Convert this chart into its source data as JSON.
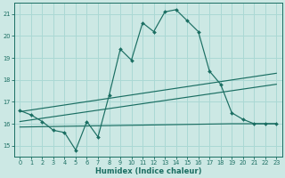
{
  "xlabel": "Humidex (Indice chaleur)",
  "background_color": "#cce8e4",
  "grid_color": "#aad8d4",
  "line_color": "#1a6e62",
  "xlim": [
    -0.5,
    23.5
  ],
  "ylim": [
    14.5,
    21.5
  ],
  "yticks": [
    15,
    16,
    17,
    18,
    19,
    20,
    21
  ],
  "xticks": [
    0,
    1,
    2,
    3,
    4,
    5,
    6,
    7,
    8,
    9,
    10,
    11,
    12,
    13,
    14,
    15,
    16,
    17,
    18,
    19,
    20,
    21,
    22,
    23
  ],
  "main_x": [
    0,
    1,
    2,
    3,
    4,
    5,
    6,
    7,
    8,
    9,
    10,
    11,
    12,
    13,
    14,
    15,
    16,
    17,
    18,
    19,
    20,
    21,
    22,
    23
  ],
  "main_y": [
    16.6,
    16.4,
    16.1,
    15.7,
    15.6,
    14.8,
    16.1,
    15.4,
    17.3,
    19.4,
    18.9,
    20.6,
    20.2,
    21.1,
    21.2,
    20.7,
    20.2,
    18.4,
    17.8,
    16.5,
    16.2,
    16.0,
    16.0,
    16.0
  ],
  "trend1_x": [
    0,
    23
  ],
  "trend1_y": [
    16.55,
    18.3
  ],
  "trend2_x": [
    0,
    23
  ],
  "trend2_y": [
    16.1,
    17.8
  ],
  "trend3_x": [
    0,
    19,
    23
  ],
  "trend3_y": [
    15.85,
    16.0,
    16.0
  ]
}
